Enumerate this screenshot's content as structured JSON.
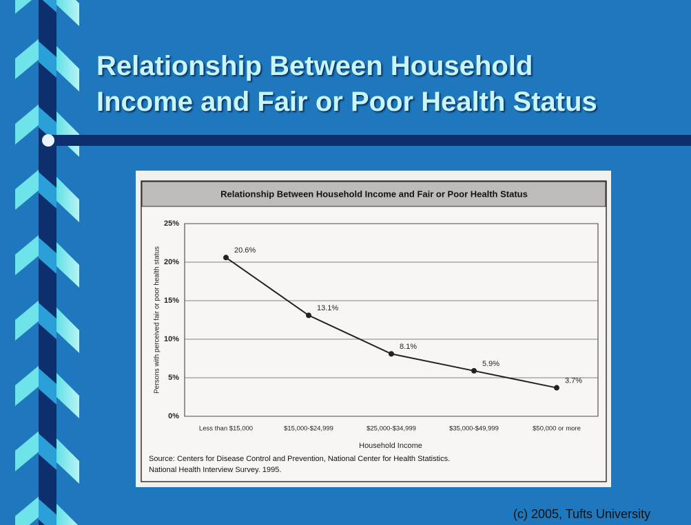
{
  "slide": {
    "title": "Relationship Between Household Income and Fair or Poor Health Status",
    "copyright": "(c) 2005, Tufts University"
  },
  "chart_data": {
    "type": "line",
    "title": "Relationship Between Household Income and Fair or Poor Health Status",
    "x_label": "Household Income",
    "y_label": "Persons with perceived fair or poor health status",
    "categories": [
      "Less than $15,000",
      "$15,000-$24,999",
      "$25,000-$34,999",
      "$35,000-$49,999",
      "$50,000 or more"
    ],
    "values": [
      20.6,
      13.1,
      8.1,
      5.9,
      3.7
    ],
    "value_labels": [
      "20.6%",
      "13.1%",
      "8.1%",
      "5.9%",
      "3.7%"
    ],
    "color": "#222222",
    "ylim": [
      0,
      25
    ],
    "yticks": [
      {
        "value": 0,
        "label": "0%"
      },
      {
        "value": 5,
        "label": "5%"
      },
      {
        "value": 10,
        "label": "10%"
      },
      {
        "value": 15,
        "label": "15%"
      },
      {
        "value": 20,
        "label": "20%"
      },
      {
        "value": 25,
        "label": "25%"
      }
    ],
    "grid": true,
    "source": [
      "Source:  Centers for Disease Control and Prevention, National Center for Health Statistics.",
      "National Health Interview Survey. 1995."
    ]
  }
}
